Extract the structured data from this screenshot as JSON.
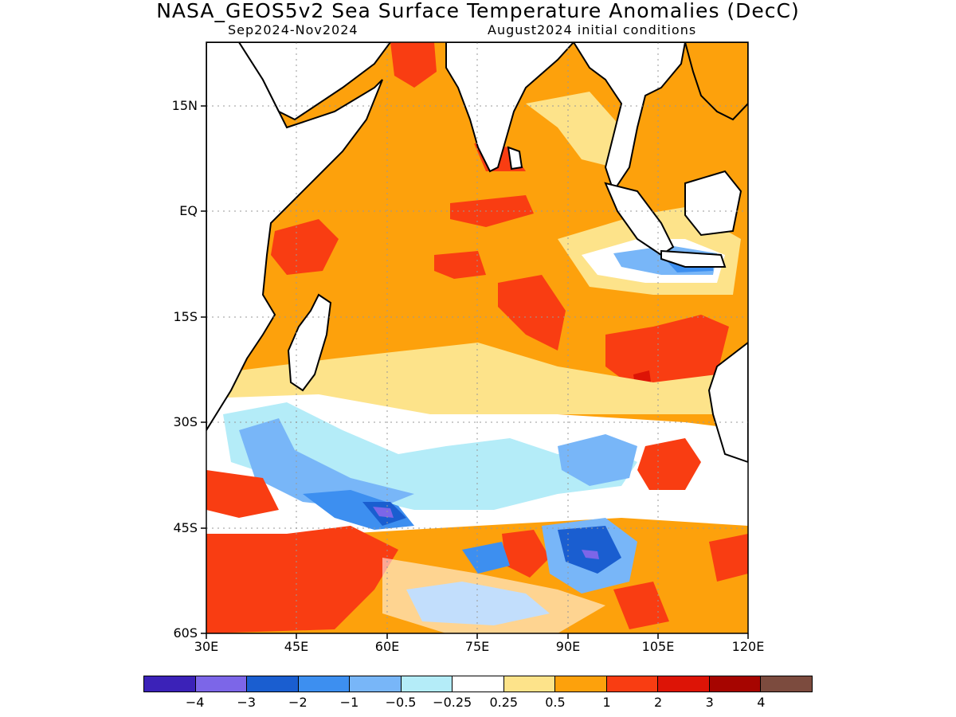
{
  "title": "NASA_GEOS5v2 Sea Surface Temperature Anomalies (DecC)",
  "subtitle_left": "Sep2024-Nov2024",
  "subtitle_right": "August2024 initial conditions",
  "map": {
    "projection": "lat-lon",
    "region": "Indian Ocean",
    "lon_range": [
      30,
      120
    ],
    "lat_range": [
      -60,
      21
    ],
    "grid": true,
    "lat_labels": [
      "15N",
      "EQ",
      "15S",
      "30S",
      "45S",
      "60S"
    ],
    "lon_labels": [
      "30E",
      "45E",
      "60E",
      "75E",
      "90E",
      "105E",
      "120E"
    ]
  },
  "colorbar": {
    "colors": [
      "#3b22b8",
      "#7c66e8",
      "#1a5ed0",
      "#3d8ff0",
      "#78b6f8",
      "#b4ecf8",
      "#ffffff",
      "#fde38a",
      "#fda10c",
      "#f93d12",
      "#dd1406",
      "#a60500",
      "#7c4b3e"
    ],
    "labels": [
      "-4",
      "-3",
      "-2",
      "-1",
      "-0.5",
      "-0.25",
      "0.25",
      "0.5",
      "1",
      "2",
      "3",
      "4"
    ]
  },
  "chart_data": {
    "type": "heatmap",
    "title": "NASA_GEOS5v2 Sea Surface Temperature Anomalies (DecC)",
    "subtitle": "Sep2024-Nov2024  August2024 initial conditions",
    "x_range": [
      30,
      120
    ],
    "y_range": [
      -60,
      21
    ],
    "x_ticks": [
      "30E",
      "45E",
      "60E",
      "75E",
      "90E",
      "105E",
      "120E"
    ],
    "y_ticks": [
      "15N",
      "EQ",
      "15S",
      "30S",
      "45S",
      "60S"
    ],
    "levels": [
      -4,
      -3,
      -2,
      -1,
      -0.5,
      -0.25,
      0.25,
      0.5,
      1,
      2,
      3,
      4
    ]
  }
}
